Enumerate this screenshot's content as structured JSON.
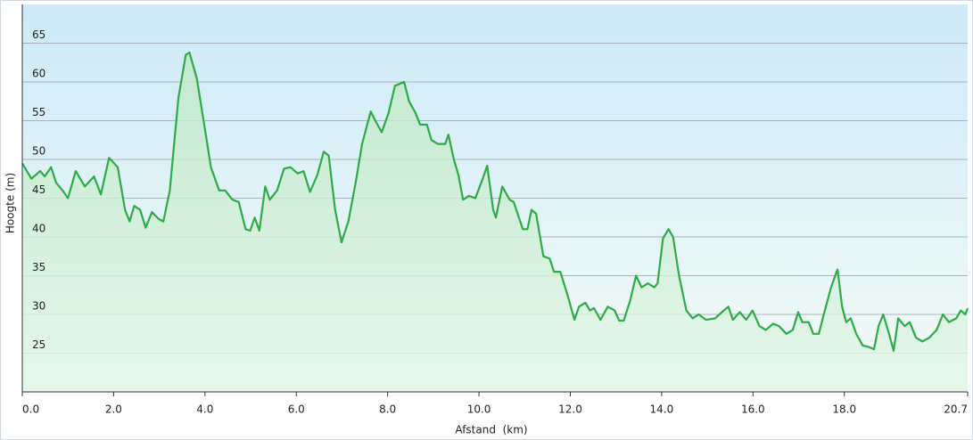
{
  "chart_data": {
    "type": "area",
    "y_label": "Hoogte (m)",
    "x_label": "Afstand  (km)",
    "color": "#2eaa48",
    "grid": true,
    "xlim": [
      0,
      20.7
    ],
    "ylim": [
      20,
      70
    ],
    "xticks": [
      {
        "value": 0,
        "label": "0.0"
      },
      {
        "value": 2,
        "label": "2.0"
      },
      {
        "value": 4,
        "label": "4.0"
      },
      {
        "value": 6,
        "label": "6.0"
      },
      {
        "value": 8,
        "label": "8.0"
      },
      {
        "value": 10,
        "label": "10.0"
      },
      {
        "value": 12,
        "label": "12.0"
      },
      {
        "value": 14,
        "label": "14.0"
      },
      {
        "value": 16,
        "label": "16.0"
      },
      {
        "value": 18,
        "label": "18.0"
      },
      20.7
    ],
    "yticks": [
      25,
      30,
      35,
      40,
      45,
      50,
      55,
      60,
      65
    ],
    "x": [
      0,
      0.2,
      0.39,
      0.49,
      0.63,
      0.74,
      0.88,
      1.0,
      1.17,
      1.37,
      1.57,
      1.72,
      1.9,
      2.09,
      2.25,
      2.35,
      2.45,
      2.58,
      2.7,
      2.84,
      2.99,
      3.09,
      3.23,
      3.42,
      3.58,
      3.66,
      3.82,
      3.97,
      4.13,
      4.31,
      4.44,
      4.6,
      4.74,
      4.89,
      4.99,
      5.09,
      5.19,
      5.32,
      5.42,
      5.58,
      5.73,
      5.87,
      6.03,
      6.16,
      6.3,
      6.46,
      6.6,
      6.71,
      6.85,
      6.99,
      7.14,
      7.3,
      7.44,
      7.63,
      7.73,
      7.87,
      8.02,
      8.16,
      8.36,
      8.47,
      8.61,
      8.71,
      8.86,
      8.96,
      9.1,
      9.26,
      9.33,
      9.45,
      9.55,
      9.65,
      9.78,
      9.92,
      10.08,
      10.18,
      10.31,
      10.37,
      10.51,
      10.67,
      10.76,
      10.96,
      11.06,
      11.15,
      11.25,
      11.41,
      11.55,
      11.64,
      11.78,
      11.94,
      12.09,
      12.19,
      12.33,
      12.43,
      12.52,
      12.66,
      12.82,
      12.97,
      13.07,
      13.17,
      13.31,
      13.44,
      13.56,
      13.7,
      13.84,
      13.91,
      14.03,
      14.15,
      14.25,
      14.38,
      14.54,
      14.68,
      14.81,
      14.97,
      15.17,
      15.32,
      15.46,
      15.56,
      15.71,
      15.85,
      15.99,
      16.14,
      16.28,
      16.44,
      16.57,
      16.73,
      16.87,
      16.99,
      17.08,
      17.22,
      17.32,
      17.44,
      17.55,
      17.71,
      17.85,
      17.95,
      18.04,
      18.14,
      18.26,
      18.4,
      18.53,
      18.65,
      18.75,
      18.85,
      18.98,
      19.08,
      19.18,
      19.32,
      19.43,
      19.57,
      19.71,
      19.86,
      20.02,
      20.16,
      20.29,
      20.45,
      20.55,
      20.65,
      20.7
    ],
    "values": [
      49.5,
      47.5,
      48.5,
      47.8,
      49,
      47,
      46,
      45,
      48.5,
      46.5,
      47.8,
      45.5,
      50.2,
      49,
      43.5,
      42,
      44,
      43.5,
      41.2,
      43.2,
      42.3,
      42,
      46,
      58,
      63.5,
      63.8,
      60.5,
      55,
      49,
      46,
      46,
      44.8,
      44.5,
      41,
      40.8,
      42.5,
      40.8,
      46.5,
      44.8,
      46,
      48.8,
      49,
      48.2,
      48.5,
      45.8,
      48,
      51,
      50.5,
      43.5,
      39.3,
      42,
      47,
      52,
      56.2,
      55,
      53.5,
      56,
      59.5,
      60,
      57.5,
      56,
      54.5,
      54.5,
      52.5,
      52,
      52,
      53.2,
      50,
      48,
      44.8,
      45.3,
      45,
      47.5,
      49.2,
      43.5,
      42.5,
      46.5,
      44.8,
      44.5,
      41,
      41,
      43.5,
      43,
      37.5,
      37.2,
      35.5,
      35.5,
      32.5,
      29.3,
      31,
      31.5,
      30.5,
      30.8,
      29.3,
      31,
      30.5,
      29.2,
      29.2,
      31.8,
      35,
      33.5,
      34,
      33.5,
      34,
      39.8,
      41,
      40,
      35,
      30.5,
      29.5,
      30,
      29.3,
      29.5,
      30.3,
      31,
      29.3,
      30.3,
      29.3,
      30.5,
      28.5,
      28,
      28.8,
      28.5,
      27.5,
      28,
      30.3,
      29,
      29,
      27.5,
      27.5,
      30,
      33.5,
      35.8,
      31,
      29,
      29.5,
      27.5,
      26,
      25.8,
      25.5,
      28.5,
      30,
      27.5,
      25.3,
      29.5,
      28.5,
      29,
      27,
      26.5,
      27,
      28,
      30,
      29,
      29.5,
      30.5,
      30,
      30.8
    ]
  }
}
